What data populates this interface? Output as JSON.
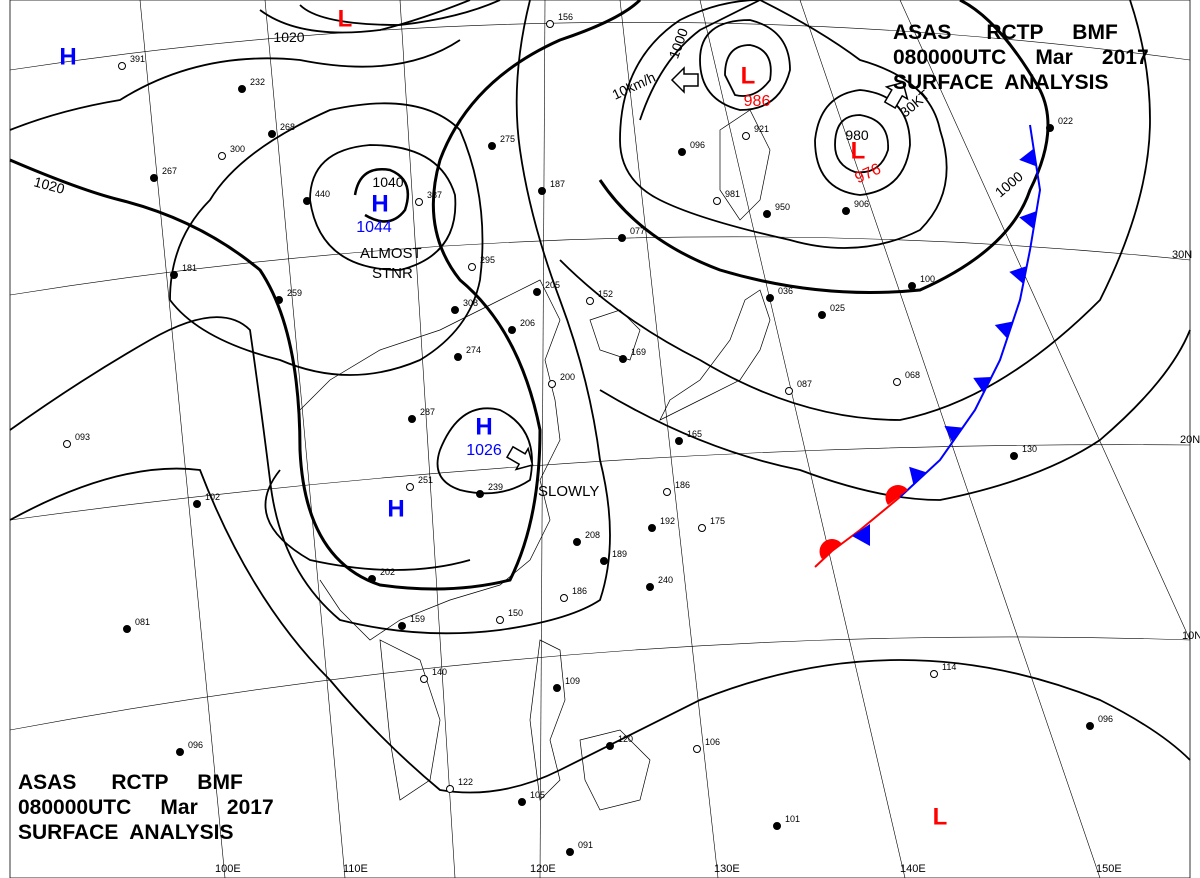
{
  "header": {
    "line1": "ASAS      RCTP     BMF",
    "line2": "080000UTC     Mar     2017",
    "line3": "SURFACE  ANALYSIS"
  },
  "footer": {
    "line1": "ASAS      RCTP     BMF",
    "line2": "080000UTC     Mar     2017",
    "line3": "SURFACE  ANALYSIS"
  },
  "colors": {
    "high": "#0000ff",
    "low": "#ff0000",
    "isobar": "#000000",
    "grid": "#000000",
    "cold_front": "#0000ff",
    "warm_front": "#ff0000"
  },
  "pressure_centers": [
    {
      "type": "H",
      "value": ""
    },
    {
      "type": "L",
      "value": ""
    },
    {
      "type": "H",
      "value": "1044"
    },
    {
      "type": "H",
      "value": "1026"
    },
    {
      "type": "H",
      "value": ""
    },
    {
      "type": "L",
      "value": "986"
    },
    {
      "type": "L",
      "value": "976"
    },
    {
      "type": "L",
      "value": ""
    }
  ],
  "isobar_labels": [
    "1020",
    "1020",
    "1040",
    "1000",
    "980",
    "1000"
  ],
  "annotations": {
    "almost_stnr": [
      "ALMOST",
      "STNR"
    ],
    "slowly": "SLOWLY",
    "speed1": "10km/h",
    "speed2": "30KT"
  },
  "latitude_labels": [
    "30N",
    "20N",
    "10N"
  ],
  "longitude_labels": [
    "100E",
    "110E",
    "120E",
    "130E",
    "140E",
    "150E"
  ],
  "stations": [
    "391",
    "232",
    "268",
    "300",
    "267",
    "440",
    "387",
    "275",
    "187",
    "156",
    "181",
    "259",
    "295",
    "308",
    "205",
    "152",
    "274",
    "206",
    "200",
    "169",
    "287",
    "251",
    "239",
    "102",
    "093",
    "202",
    "159",
    "150",
    "208",
    "189",
    "186",
    "240",
    "192",
    "175",
    "165",
    "081",
    "140",
    "109",
    "096",
    "122",
    "105",
    "120",
    "106",
    "091",
    "101",
    "114",
    "096",
    "130",
    "068",
    "100",
    "025",
    "087",
    "036",
    "077",
    "981",
    "950",
    "906",
    "921",
    "096",
    "022",
    "186"
  ]
}
